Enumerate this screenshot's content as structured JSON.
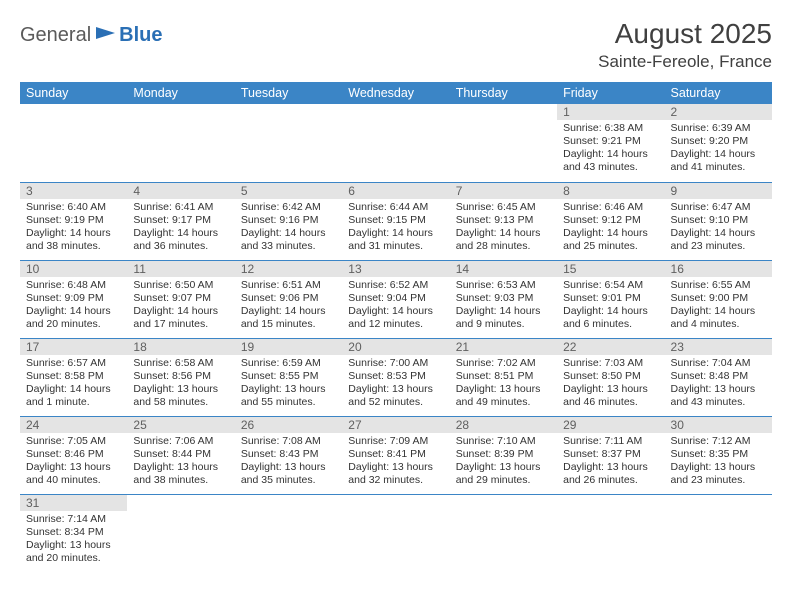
{
  "logo": {
    "text1": "General",
    "text2": "Blue",
    "icon_color": "#2a6fb5"
  },
  "header": {
    "month_title": "August 2025",
    "location": "Sainte-Fereole, France"
  },
  "style": {
    "header_bg": "#3b85c6",
    "header_fg": "#ffffff",
    "daynum_bg": "#e4e4e4",
    "border_color": "#3b85c6",
    "title_fontsize": 28,
    "location_fontsize": 17,
    "th_fontsize": 12.5,
    "body_fontsize": 10.5
  },
  "weekdays": [
    "Sunday",
    "Monday",
    "Tuesday",
    "Wednesday",
    "Thursday",
    "Friday",
    "Saturday"
  ],
  "weeks": [
    [
      null,
      null,
      null,
      null,
      null,
      {
        "n": "1",
        "sunrise": "Sunrise: 6:38 AM",
        "sunset": "Sunset: 9:21 PM",
        "daylight": "Daylight: 14 hours and 43 minutes."
      },
      {
        "n": "2",
        "sunrise": "Sunrise: 6:39 AM",
        "sunset": "Sunset: 9:20 PM",
        "daylight": "Daylight: 14 hours and 41 minutes."
      }
    ],
    [
      {
        "n": "3",
        "sunrise": "Sunrise: 6:40 AM",
        "sunset": "Sunset: 9:19 PM",
        "daylight": "Daylight: 14 hours and 38 minutes."
      },
      {
        "n": "4",
        "sunrise": "Sunrise: 6:41 AM",
        "sunset": "Sunset: 9:17 PM",
        "daylight": "Daylight: 14 hours and 36 minutes."
      },
      {
        "n": "5",
        "sunrise": "Sunrise: 6:42 AM",
        "sunset": "Sunset: 9:16 PM",
        "daylight": "Daylight: 14 hours and 33 minutes."
      },
      {
        "n": "6",
        "sunrise": "Sunrise: 6:44 AM",
        "sunset": "Sunset: 9:15 PM",
        "daylight": "Daylight: 14 hours and 31 minutes."
      },
      {
        "n": "7",
        "sunrise": "Sunrise: 6:45 AM",
        "sunset": "Sunset: 9:13 PM",
        "daylight": "Daylight: 14 hours and 28 minutes."
      },
      {
        "n": "8",
        "sunrise": "Sunrise: 6:46 AM",
        "sunset": "Sunset: 9:12 PM",
        "daylight": "Daylight: 14 hours and 25 minutes."
      },
      {
        "n": "9",
        "sunrise": "Sunrise: 6:47 AM",
        "sunset": "Sunset: 9:10 PM",
        "daylight": "Daylight: 14 hours and 23 minutes."
      }
    ],
    [
      {
        "n": "10",
        "sunrise": "Sunrise: 6:48 AM",
        "sunset": "Sunset: 9:09 PM",
        "daylight": "Daylight: 14 hours and 20 minutes."
      },
      {
        "n": "11",
        "sunrise": "Sunrise: 6:50 AM",
        "sunset": "Sunset: 9:07 PM",
        "daylight": "Daylight: 14 hours and 17 minutes."
      },
      {
        "n": "12",
        "sunrise": "Sunrise: 6:51 AM",
        "sunset": "Sunset: 9:06 PM",
        "daylight": "Daylight: 14 hours and 15 minutes."
      },
      {
        "n": "13",
        "sunrise": "Sunrise: 6:52 AM",
        "sunset": "Sunset: 9:04 PM",
        "daylight": "Daylight: 14 hours and 12 minutes."
      },
      {
        "n": "14",
        "sunrise": "Sunrise: 6:53 AM",
        "sunset": "Sunset: 9:03 PM",
        "daylight": "Daylight: 14 hours and 9 minutes."
      },
      {
        "n": "15",
        "sunrise": "Sunrise: 6:54 AM",
        "sunset": "Sunset: 9:01 PM",
        "daylight": "Daylight: 14 hours and 6 minutes."
      },
      {
        "n": "16",
        "sunrise": "Sunrise: 6:55 AM",
        "sunset": "Sunset: 9:00 PM",
        "daylight": "Daylight: 14 hours and 4 minutes."
      }
    ],
    [
      {
        "n": "17",
        "sunrise": "Sunrise: 6:57 AM",
        "sunset": "Sunset: 8:58 PM",
        "daylight": "Daylight: 14 hours and 1 minute."
      },
      {
        "n": "18",
        "sunrise": "Sunrise: 6:58 AM",
        "sunset": "Sunset: 8:56 PM",
        "daylight": "Daylight: 13 hours and 58 minutes."
      },
      {
        "n": "19",
        "sunrise": "Sunrise: 6:59 AM",
        "sunset": "Sunset: 8:55 PM",
        "daylight": "Daylight: 13 hours and 55 minutes."
      },
      {
        "n": "20",
        "sunrise": "Sunrise: 7:00 AM",
        "sunset": "Sunset: 8:53 PM",
        "daylight": "Daylight: 13 hours and 52 minutes."
      },
      {
        "n": "21",
        "sunrise": "Sunrise: 7:02 AM",
        "sunset": "Sunset: 8:51 PM",
        "daylight": "Daylight: 13 hours and 49 minutes."
      },
      {
        "n": "22",
        "sunrise": "Sunrise: 7:03 AM",
        "sunset": "Sunset: 8:50 PM",
        "daylight": "Daylight: 13 hours and 46 minutes."
      },
      {
        "n": "23",
        "sunrise": "Sunrise: 7:04 AM",
        "sunset": "Sunset: 8:48 PM",
        "daylight": "Daylight: 13 hours and 43 minutes."
      }
    ],
    [
      {
        "n": "24",
        "sunrise": "Sunrise: 7:05 AM",
        "sunset": "Sunset: 8:46 PM",
        "daylight": "Daylight: 13 hours and 40 minutes."
      },
      {
        "n": "25",
        "sunrise": "Sunrise: 7:06 AM",
        "sunset": "Sunset: 8:44 PM",
        "daylight": "Daylight: 13 hours and 38 minutes."
      },
      {
        "n": "26",
        "sunrise": "Sunrise: 7:08 AM",
        "sunset": "Sunset: 8:43 PM",
        "daylight": "Daylight: 13 hours and 35 minutes."
      },
      {
        "n": "27",
        "sunrise": "Sunrise: 7:09 AM",
        "sunset": "Sunset: 8:41 PM",
        "daylight": "Daylight: 13 hours and 32 minutes."
      },
      {
        "n": "28",
        "sunrise": "Sunrise: 7:10 AM",
        "sunset": "Sunset: 8:39 PM",
        "daylight": "Daylight: 13 hours and 29 minutes."
      },
      {
        "n": "29",
        "sunrise": "Sunrise: 7:11 AM",
        "sunset": "Sunset: 8:37 PM",
        "daylight": "Daylight: 13 hours and 26 minutes."
      },
      {
        "n": "30",
        "sunrise": "Sunrise: 7:12 AM",
        "sunset": "Sunset: 8:35 PM",
        "daylight": "Daylight: 13 hours and 23 minutes."
      }
    ],
    [
      {
        "n": "31",
        "sunrise": "Sunrise: 7:14 AM",
        "sunset": "Sunset: 8:34 PM",
        "daylight": "Daylight: 13 hours and 20 minutes."
      },
      null,
      null,
      null,
      null,
      null,
      null
    ]
  ]
}
